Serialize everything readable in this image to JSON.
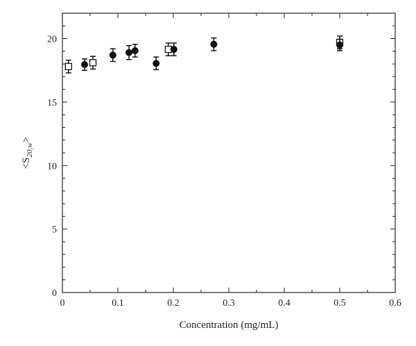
{
  "chart_data": {
    "type": "scatter",
    "title": "",
    "xlabel": "Concentration (mg/mL)",
    "ylabel_parts": {
      "pre": "<S",
      "sub": "20,w",
      "post": ">"
    },
    "xlim": [
      0,
      0.6
    ],
    "ylim": [
      0,
      22
    ],
    "xticks": [
      "0",
      "0.1",
      "0.2",
      "0.3",
      "0.4",
      "0.5",
      "0.6"
    ],
    "yticks": [
      "0",
      "5",
      "10",
      "15",
      "20"
    ],
    "grid": false,
    "series": [
      {
        "name": "open-squares",
        "marker": "square-open",
        "x": [
          0.011,
          0.055,
          0.191,
          0.5
        ],
        "y": [
          17.8,
          18.1,
          19.15,
          19.7
        ],
        "err": [
          0.5,
          0.5,
          0.5,
          0.5
        ]
      },
      {
        "name": "filled-circles",
        "marker": "circle-filled",
        "x": [
          0.04,
          0.091,
          0.12,
          0.131,
          0.169,
          0.201,
          0.273,
          0.5
        ],
        "y": [
          17.95,
          18.7,
          18.9,
          19.05,
          18.05,
          19.15,
          19.55,
          19.5
        ],
        "err": [
          0.45,
          0.5,
          0.55,
          0.5,
          0.5,
          0.5,
          0.5,
          0.45
        ]
      }
    ]
  }
}
